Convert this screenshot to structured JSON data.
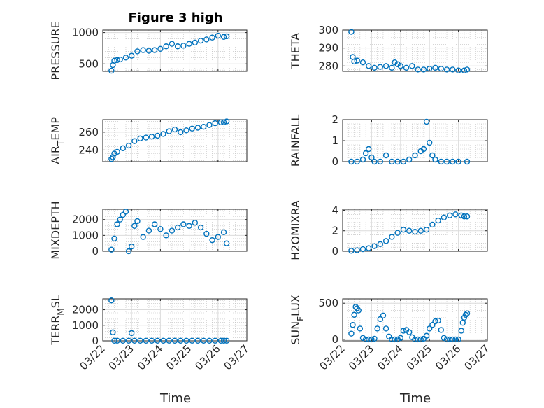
{
  "title": "Figure 3 high",
  "xlabel": "Time",
  "x_ticks": [
    "03/22",
    "03/23",
    "03/24",
    "03/25",
    "03/26",
    "03/27"
  ],
  "colors": {
    "marker": "#0072BD",
    "axis": "#262626",
    "grid": "#bfbfbf"
  },
  "chart_data": [
    {
      "type": "scatter",
      "name": "pressure",
      "ylabel": "PRESSURE",
      "ylim": [
        380,
        1040
      ],
      "yticks": [
        500,
        1000
      ],
      "x": [
        0.3,
        0.35,
        0.4,
        0.5,
        0.6,
        0.8,
        1.0,
        1.2,
        1.4,
        1.6,
        1.8,
        2.0,
        2.2,
        2.4,
        2.6,
        2.8,
        3.0,
        3.2,
        3.4,
        3.6,
        3.8,
        4.0,
        4.2,
        4.3
      ],
      "y": [
        390,
        480,
        550,
        560,
        570,
        600,
        630,
        700,
        720,
        710,
        720,
        740,
        780,
        820,
        780,
        790,
        820,
        840,
        870,
        890,
        920,
        950,
        930,
        940
      ]
    },
    {
      "type": "scatter",
      "name": "theta",
      "ylabel": "THETA",
      "ylim": [
        277,
        300
      ],
      "yticks": [
        280,
        290,
        300
      ],
      "x": [
        0.3,
        0.35,
        0.4,
        0.5,
        0.7,
        0.9,
        1.1,
        1.3,
        1.5,
        1.7,
        1.8,
        1.9,
        2.0,
        2.2,
        2.4,
        2.6,
        2.8,
        3.0,
        3.2,
        3.4,
        3.6,
        3.8,
        4.0,
        4.2,
        4.3
      ],
      "y": [
        299,
        285,
        282.5,
        283,
        282,
        280,
        279,
        279.5,
        280,
        279,
        282,
        281,
        280,
        279,
        280,
        278,
        278,
        278.5,
        279,
        278.5,
        278,
        278,
        277.5,
        277.5,
        278
      ]
    },
    {
      "type": "scatter",
      "name": "air_temp",
      "ylabel": "AIR_TEMP",
      "ylim": [
        227,
        274
      ],
      "yticks": [
        240,
        260
      ],
      "x": [
        0.3,
        0.35,
        0.4,
        0.5,
        0.7,
        0.9,
        1.1,
        1.3,
        1.5,
        1.7,
        1.9,
        2.1,
        2.3,
        2.5,
        2.7,
        2.9,
        3.1,
        3.3,
        3.5,
        3.7,
        3.9,
        4.1,
        4.2,
        4.3
      ],
      "y": [
        230,
        232,
        236,
        238,
        242,
        245,
        250,
        253,
        254,
        255,
        256,
        258,
        261,
        263,
        260,
        262,
        264,
        265,
        266,
        268,
        270,
        271,
        271,
        272
      ]
    },
    {
      "type": "scatter",
      "name": "rainfall",
      "ylabel": "RAINFALL",
      "ylim": [
        0,
        2
      ],
      "yticks": [
        0,
        1,
        2
      ],
      "x": [
        0.3,
        0.5,
        0.7,
        0.8,
        0.9,
        1.0,
        1.1,
        1.3,
        1.5,
        1.7,
        1.9,
        2.1,
        2.3,
        2.5,
        2.7,
        2.8,
        2.9,
        3.0,
        3.1,
        3.2,
        3.4,
        3.6,
        3.8,
        4.0,
        4.3
      ],
      "y": [
        0,
        0,
        0.1,
        0.4,
        0.6,
        0.2,
        0,
        0,
        0.3,
        0,
        0,
        0,
        0.1,
        0.3,
        0.5,
        0.6,
        1.9,
        0.9,
        0.3,
        0.1,
        0,
        0,
        0,
        0,
        0
      ]
    },
    {
      "type": "scatter",
      "name": "mixdepth",
      "ylabel": "MIXDEPTH",
      "ylim": [
        0,
        2650
      ],
      "yticks": [
        0,
        1000,
        2000
      ],
      "x": [
        0.3,
        0.4,
        0.5,
        0.6,
        0.7,
        0.8,
        0.9,
        1.0,
        1.1,
        1.2,
        1.4,
        1.6,
        1.8,
        2.0,
        2.2,
        2.4,
        2.6,
        2.8,
        3.0,
        3.2,
        3.4,
        3.6,
        3.8,
        4.0,
        4.2,
        4.3
      ],
      "y": [
        100,
        800,
        1700,
        2000,
        2300,
        2500,
        0,
        300,
        1600,
        1900,
        900,
        1300,
        1700,
        1400,
        1000,
        1300,
        1500,
        1700,
        1600,
        1800,
        1500,
        1100,
        700,
        900,
        1200,
        500
      ]
    },
    {
      "type": "scatter",
      "name": "h2omixra",
      "ylabel": "H2OMIXRA",
      "ylim": [
        0,
        4.1
      ],
      "yticks": [
        0,
        2,
        4
      ],
      "x": [
        0.3,
        0.5,
        0.7,
        0.9,
        1.1,
        1.3,
        1.5,
        1.7,
        1.9,
        2.1,
        2.3,
        2.5,
        2.7,
        2.9,
        3.1,
        3.3,
        3.5,
        3.7,
        3.9,
        4.1,
        4.2,
        4.3
      ],
      "y": [
        0.05,
        0.1,
        0.2,
        0.3,
        0.5,
        0.7,
        1.0,
        1.4,
        1.8,
        2.1,
        2.0,
        1.9,
        2.0,
        2.1,
        2.6,
        3.0,
        3.3,
        3.5,
        3.6,
        3.5,
        3.4,
        3.4
      ]
    },
    {
      "type": "scatter",
      "name": "terr_msl",
      "ylabel": "TERR_MSL",
      "ylim": [
        0,
        2700
      ],
      "yticks": [
        0,
        1000,
        2000
      ],
      "x": [
        0.3,
        0.35,
        0.4,
        0.5,
        0.7,
        0.9,
        1.0,
        1.1,
        1.3,
        1.5,
        1.7,
        1.9,
        2.1,
        2.3,
        2.5,
        2.7,
        2.9,
        3.1,
        3.3,
        3.5,
        3.7,
        3.9,
        4.1,
        4.2,
        4.3
      ],
      "y": [
        2600,
        550,
        10,
        10,
        10,
        10,
        500,
        10,
        10,
        10,
        10,
        10,
        10,
        10,
        10,
        10,
        10,
        10,
        10,
        10,
        10,
        10,
        10,
        10,
        10
      ]
    },
    {
      "type": "scatter",
      "name": "sun_flux",
      "ylabel": "SUN_FLUX",
      "ylim": [
        -20,
        560
      ],
      "yticks": [
        0,
        500
      ],
      "x": [
        0.3,
        0.35,
        0.4,
        0.45,
        0.5,
        0.55,
        0.6,
        0.7,
        0.8,
        0.9,
        1.0,
        1.1,
        1.2,
        1.3,
        1.4,
        1.5,
        1.6,
        1.7,
        1.8,
        1.9,
        2.0,
        2.1,
        2.2,
        2.3,
        2.4,
        2.5,
        2.6,
        2.7,
        2.8,
        2.9,
        3.0,
        3.1,
        3.2,
        3.3,
        3.4,
        3.5,
        3.6,
        3.7,
        3.8,
        3.9,
        4.0,
        4.1,
        4.15,
        4.2,
        4.25,
        4.3
      ],
      "y": [
        80,
        200,
        340,
        450,
        430,
        400,
        150,
        20,
        0,
        0,
        0,
        10,
        150,
        280,
        330,
        150,
        40,
        0,
        0,
        0,
        20,
        120,
        130,
        100,
        30,
        0,
        0,
        0,
        10,
        50,
        150,
        200,
        250,
        260,
        130,
        20,
        0,
        0,
        0,
        0,
        0,
        120,
        230,
        300,
        340,
        360
      ]
    }
  ]
}
